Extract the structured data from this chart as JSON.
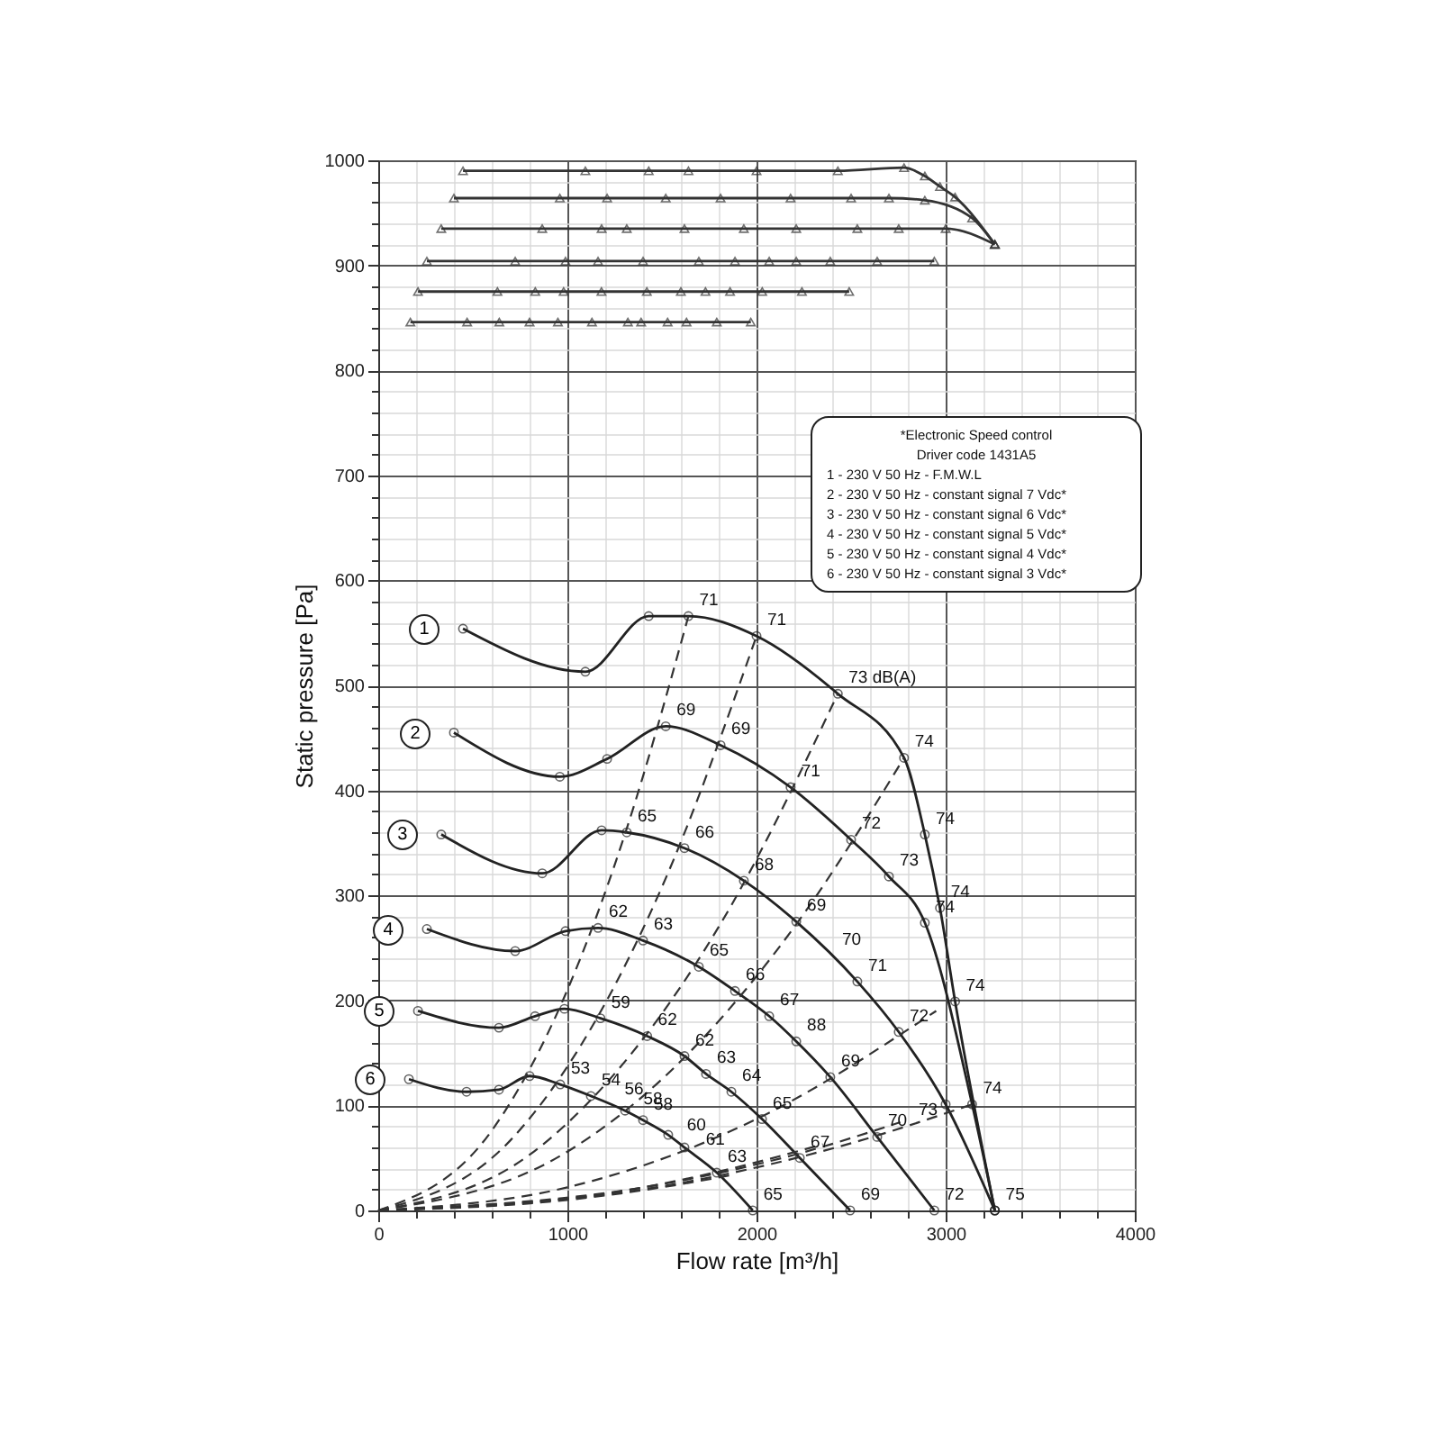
{
  "chart_data": {
    "type": "line",
    "xlabel": "Flow rate [m³/h]",
    "ylabel": "Static pressure [Pa]",
    "xlim": [
      0,
      4000
    ],
    "ylim": [
      0,
      1000
    ],
    "xticks": [
      0,
      {
        "value": 200,
        "label": null
      },
      {
        "value": 400,
        "label": null
      },
      {
        "value": 600,
        "label": null
      },
      {
        "value": 800,
        "label": null
      },
      1000,
      {
        "value": 1200,
        "label": null
      },
      {
        "value": 1400,
        "label": null
      },
      {
        "value": 1600,
        "label": null
      },
      {
        "value": 1800,
        "label": null
      },
      2000,
      {
        "value": 2200,
        "label": null
      },
      {
        "value": 2400,
        "label": null
      },
      {
        "value": 2600,
        "label": null
      },
      {
        "value": 2800,
        "label": null
      },
      3000,
      {
        "value": 3200,
        "label": null
      },
      {
        "value": 3400,
        "label": null
      },
      {
        "value": 3600,
        "label": null
      },
      {
        "value": 3800,
        "label": null
      },
      4000
    ],
    "yticks": [
      0,
      {
        "value": 20,
        "label": null
      },
      {
        "value": 40,
        "label": null
      },
      {
        "value": 60,
        "label": null
      },
      {
        "value": 80,
        "label": null
      },
      100,
      {
        "value": 120,
        "label": null
      },
      {
        "value": 140,
        "label": null
      },
      {
        "value": 160,
        "label": null
      },
      {
        "value": 180,
        "label": null
      },
      200,
      {
        "value": 220,
        "label": null
      },
      {
        "value": 240,
        "label": null
      },
      {
        "value": 260,
        "label": null
      },
      {
        "value": 280,
        "label": null
      },
      300,
      {
        "value": 320,
        "label": null
      },
      {
        "value": 340,
        "label": null
      },
      {
        "value": 360,
        "label": null
      },
      {
        "value": 380,
        "label": null
      },
      400,
      {
        "value": 420,
        "label": null
      },
      {
        "value": 440,
        "label": null
      },
      {
        "value": 460,
        "label": null
      },
      {
        "value": 480,
        "label": null
      },
      500,
      {
        "value": 520,
        "label": null
      },
      {
        "value": 540,
        "label": null
      },
      {
        "value": 560,
        "label": null
      },
      {
        "value": 580,
        "label": null
      },
      600,
      {
        "value": 620,
        "label": null
      },
      {
        "value": 640,
        "label": null
      },
      {
        "value": 660,
        "label": null
      },
      {
        "value": 680,
        "label": null
      },
      700,
      {
        "value": 720,
        "label": null
      },
      {
        "value": 740,
        "label": null
      },
      {
        "value": 760,
        "label": null
      },
      {
        "value": 780,
        "label": null
      },
      800,
      {
        "value": 820,
        "label": null
      },
      {
        "value": 840,
        "label": null
      },
      {
        "value": 860,
        "label": null
      },
      {
        "value": 880,
        "label": null
      },
      900,
      {
        "value": 920,
        "label": null
      },
      {
        "value": 940,
        "label": null
      },
      {
        "value": 960,
        "label": null
      },
      {
        "value": 980,
        "label": null
      },
      1000
    ],
    "grid": true,
    "series": [
      {
        "name": "1",
        "color": "#222222",
        "marker": "circle",
        "x": [
          448,
          1095,
          1430,
          1640,
          2000,
          2430,
          2780,
          2890,
          2970,
          3050,
          3260
        ],
        "values": [
          554,
          513,
          566,
          566,
          547,
          492,
          431,
          358,
          288,
          199,
          0
        ]
      },
      {
        "name": "2",
        "color": "#222222",
        "marker": "circle",
        "x": [
          400,
          960,
          1210,
          1520,
          1810,
          2180,
          2500,
          2700,
          2890,
          3140,
          3260
        ],
        "values": [
          455,
          413,
          430,
          461,
          443,
          403,
          353,
          318,
          274,
          101,
          0
        ]
      },
      {
        "name": "3",
        "color": "#222222",
        "marker": "circle",
        "x": [
          333,
          867,
          1181,
          1314,
          1619,
          1933,
          2210,
          2533,
          2752,
          3000,
          3260
        ],
        "values": [
          358,
          321,
          362,
          360,
          345,
          314,
          275,
          218,
          170,
          101,
          0
        ]
      },
      {
        "name": "4",
        "color": "#222222",
        "marker": "circle",
        "x": [
          257,
          724,
          990,
          1162,
          1400,
          1695,
          1886,
          2067,
          2210,
          2390,
          2638,
          2940
        ],
        "values": [
          268,
          247,
          266,
          269,
          257,
          232,
          209,
          185,
          161,
          127,
          70,
          0
        ]
      },
      {
        "name": "5",
        "color": "#222222",
        "marker": "circle",
        "x": [
          210,
          638,
          829,
          984,
          1175,
          1422,
          1619,
          1733,
          1867,
          2029,
          2229,
          2495
        ],
        "values": [
          190,
          174,
          185,
          192,
          183,
          166,
          147,
          130,
          113,
          87,
          50,
          0
        ]
      },
      {
        "name": "6",
        "color": "#222222",
        "marker": "circle",
        "x": [
          162,
          467,
          638,
          800,
          962,
          1124,
          1305,
          1400,
          1533,
          1619,
          1790,
          1980
        ],
        "values": [
          125,
          113,
          115,
          128,
          120,
          109,
          95,
          86,
          72,
          60,
          36,
          0
        ]
      },
      {
        "color": "#333333",
        "marker": "triangle",
        "x": [
          448,
          1095,
          1430,
          1640,
          2000,
          2430,
          2780,
          2890,
          2970,
          3050,
          3260
        ],
        "values": [
          990,
          990,
          990,
          990,
          990,
          990,
          993,
          985,
          975,
          965,
          920
        ]
      },
      {
        "color": "#333333",
        "marker": "triangle",
        "x": [
          400,
          960,
          1210,
          1520,
          1810,
          2180,
          2500,
          2700,
          2890,
          3140,
          3260
        ],
        "values": [
          964,
          964,
          964,
          964,
          964,
          964,
          964,
          964,
          962,
          945,
          920
        ]
      },
      {
        "color": "#333333",
        "marker": "triangle",
        "x": [
          333,
          867,
          1181,
          1314,
          1619,
          1933,
          2210,
          2533,
          2752,
          3000,
          3260
        ],
        "values": [
          935,
          935,
          935,
          935,
          935,
          935,
          935,
          935,
          935,
          935,
          920
        ]
      },
      {
        "color": "#333333",
        "marker": "triangle",
        "x": [
          257,
          724,
          990,
          1162,
          1400,
          1695,
          1886,
          2067,
          2210,
          2390,
          2638,
          2940
        ],
        "values": [
          904,
          904,
          904,
          904,
          904,
          904,
          904,
          904,
          904,
          904,
          904,
          904
        ]
      },
      {
        "color": "#333333",
        "marker": "triangle",
        "x": [
          210,
          630,
          830,
          980,
          1180,
          1420,
          1600,
          1730,
          1860,
          2030,
          2240,
          2490
        ],
        "values": [
          875,
          875,
          875,
          875,
          875,
          875,
          875,
          875,
          875,
          875,
          875,
          875
        ]
      },
      {
        "color": "#333333",
        "marker": "triangle",
        "x": [
          170,
          470,
          640,
          800,
          950,
          1130,
          1320,
          1390,
          1530,
          1630,
          1790,
          1970
        ],
        "values": [
          846,
          846,
          846,
          846,
          846,
          846,
          846,
          846,
          846,
          846,
          846,
          846
        ]
      },
      {
        "color": "#333333",
        "marker": "none",
        "line_style": "dashed",
        "x": [
          0,
          600,
          1000,
          1300,
          1640
        ],
        "values": [
          0,
          76,
          210,
          356,
          566
        ]
      },
      {
        "color": "#333333",
        "marker": "none",
        "line_style": "dashed",
        "x": [
          0,
          700,
          1000,
          1500,
          2000
        ],
        "values": [
          0,
          67,
          137,
          308,
          547
        ]
      },
      {
        "color": "#333333",
        "marker": "none",
        "line_style": "dashed",
        "x": [
          0,
          800,
          1200,
          1800,
          2430
        ],
        "values": [
          0,
          53,
          120,
          270,
          492
        ]
      },
      {
        "color": "#333333",
        "marker": "none",
        "line_style": "dashed",
        "x": [
          0,
          1000,
          1500,
          2200,
          2780
        ],
        "values": [
          0,
          56,
          125,
          270,
          431
        ]
      },
      {
        "color": "#333333",
        "marker": "none",
        "line_style": "dashed",
        "x": [
          0,
          1000,
          2000,
          2950
        ],
        "values": [
          0,
          22,
          87,
          190
        ]
      },
      {
        "color": "#333333",
        "marker": "none",
        "line_style": "dashed",
        "x": [
          0,
          1500,
          2500,
          3140
        ],
        "values": [
          0,
          23,
          64,
          101
        ]
      },
      {
        "color": "#333333",
        "marker": "none",
        "line_style": "dashed",
        "x": [
          0,
          1500,
          2200,
          2760
        ],
        "values": [
          0,
          25,
          53,
          84
        ]
      },
      {
        "color": "#333333",
        "marker": "none",
        "line_style": "dashed",
        "x": [
          0,
          1200,
          1800,
          2350
        ],
        "values": [
          0,
          16,
          37,
          63
        ]
      },
      {
        "color": "#333333",
        "marker": "none",
        "line_style": "dashed",
        "x": [
          0,
          1000,
          1500,
          1876
        ],
        "values": [
          0,
          10,
          22,
          34
        ]
      }
    ],
    "annotations": [
      "*Electronic Speed control",
      "Driver code  1431A5",
      "1 - 230 V 50 Hz - F.M.W.L",
      "2 - 230 V 50 Hz - constant signal 7 Vdc*",
      "3 - 230 V 50 Hz - constant signal 6 Vdc*",
      "4 - 230 V 50 Hz - constant signal 5 Vdc*",
      "5 - 230 V 50 Hz - constant signal 4 Vdc*",
      "6 - 230 V 50 Hz - constant signal 3 Vdc*",
      {
        "text": "71",
        "x": 1640,
        "y": 566
      },
      {
        "text": "71",
        "x": 2000,
        "y": 547
      },
      {
        "text": "73 dB(A)",
        "x": 2430,
        "y": 492
      },
      {
        "text": "74",
        "x": 2780,
        "y": 431
      },
      {
        "text": "74",
        "x": 2890,
        "y": 358
      },
      {
        "text": "74",
        "x": 2970,
        "y": 288
      },
      {
        "text": "74",
        "x": 2890,
        "y": 274
      },
      {
        "text": "74",
        "x": 3050,
        "y": 199
      },
      {
        "text": "73",
        "x": 2800,
        "y": 81
      },
      {
        "text": "74",
        "x": 3140,
        "y": 101
      },
      {
        "text": "69",
        "x": 1520,
        "y": 461
      },
      {
        "text": "69",
        "x": 1810,
        "y": 443
      },
      {
        "text": "71",
        "x": 2180,
        "y": 403
      },
      {
        "text": "72",
        "x": 2500,
        "y": 353
      },
      {
        "text": "73",
        "x": 2700,
        "y": 318
      },
      {
        "text": "65",
        "x": 1314,
        "y": 360
      },
      {
        "text": "66",
        "x": 1619,
        "y": 345
      },
      {
        "text": "68",
        "x": 1933,
        "y": 314
      },
      {
        "text": "69",
        "x": 2210,
        "y": 275
      },
      {
        "text": "70",
        "x": 2395,
        "y": 243
      },
      {
        "text": "71",
        "x": 2533,
        "y": 218
      },
      {
        "text": "72",
        "x": 2752,
        "y": 170
      },
      {
        "text": "62",
        "x": 1162,
        "y": 269
      },
      {
        "text": "63",
        "x": 1400,
        "y": 257
      },
      {
        "text": "65",
        "x": 1695,
        "y": 232
      },
      {
        "text": "66",
        "x": 1886,
        "y": 209
      },
      {
        "text": "67",
        "x": 2067,
        "y": 185
      },
      {
        "text": "88",
        "x": 2210,
        "y": 161
      },
      {
        "text": "69",
        "x": 2390,
        "y": 127
      },
      {
        "text": "70",
        "x": 2638,
        "y": 70
      },
      {
        "text": "59",
        "x": 1175,
        "y": 183
      },
      {
        "text": "62",
        "x": 1422,
        "y": 166
      },
      {
        "text": "62",
        "x": 1619,
        "y": 147
      },
      {
        "text": "63",
        "x": 1733,
        "y": 130
      },
      {
        "text": "64",
        "x": 1867,
        "y": 113
      },
      {
        "text": "65",
        "x": 2029,
        "y": 87
      },
      {
        "text": "67",
        "x": 2229,
        "y": 50
      },
      {
        "text": "53",
        "x": 962,
        "y": 120
      },
      {
        "text": "54",
        "x": 1124,
        "y": 109
      },
      {
        "text": "56",
        "x": 1245,
        "y": 100
      },
      {
        "text": "58",
        "x": 1345,
        "y": 91
      },
      {
        "text": "58",
        "x": 1400,
        "y": 86
      },
      {
        "text": "60",
        "x": 1575,
        "y": 66
      },
      {
        "text": "61",
        "x": 1675,
        "y": 52
      },
      {
        "text": "63",
        "x": 1790,
        "y": 36
      },
      {
        "text": "65",
        "x": 1980,
        "y": 0
      },
      {
        "text": "69",
        "x": 2495,
        "y": 0
      },
      {
        "text": "72",
        "x": 2940,
        "y": 0
      },
      {
        "text": "75",
        "x": 3260,
        "y": 0
      }
    ]
  }
}
